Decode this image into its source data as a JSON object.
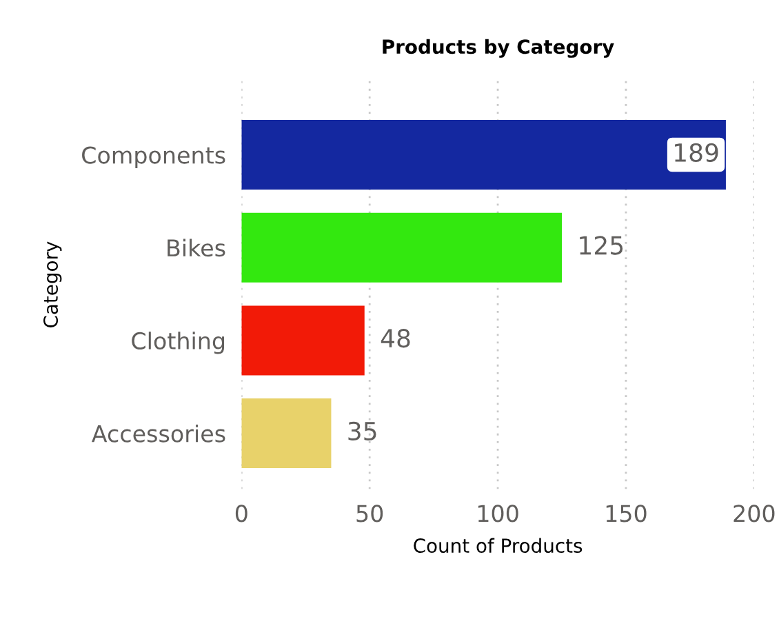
{
  "chart_data": {
    "type": "bar",
    "orientation": "horizontal",
    "title": "Products by Category",
    "xlabel": "Count of Products",
    "ylabel": "Category",
    "categories": [
      "Components",
      "Bikes",
      "Clothing",
      "Accessories"
    ],
    "values": [
      189,
      125,
      48,
      35
    ],
    "colors": [
      "#1428a0",
      "#33e80f",
      "#f21a07",
      "#e8d26a"
    ],
    "xlim": [
      0,
      200
    ],
    "xticks": [
      0,
      50,
      100,
      150,
      200
    ],
    "grid": "x",
    "data_labels": true
  }
}
